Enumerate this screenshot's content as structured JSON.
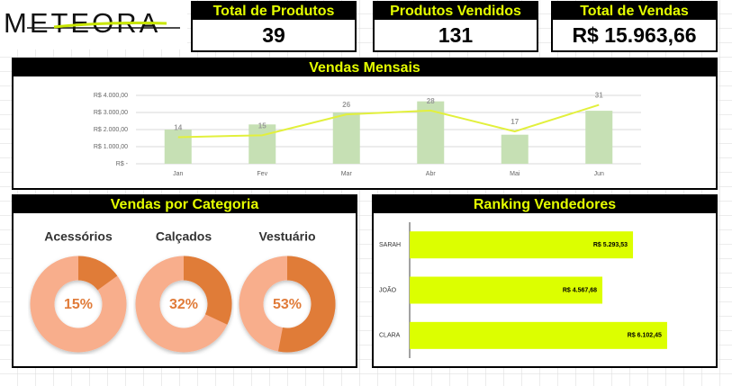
{
  "logo": "METEORA",
  "kpis": [
    {
      "title": "Total de Produtos",
      "value": "39"
    },
    {
      "title": "Produtos Vendidos",
      "value": "131"
    },
    {
      "title": "Total de Vendas",
      "value": "R$ 15.963,66"
    }
  ],
  "chart_data": [
    {
      "type": "bar",
      "title": "Vendas Mensais",
      "categories": [
        "Jan",
        "Fev",
        "Mar",
        "Abr",
        "Mai",
        "Jun"
      ],
      "series": [
        {
          "color": "#c6e0b4",
          "values": [
            2000,
            2300,
            3000,
            3650,
            1700,
            3100
          ]
        },
        {
          "type": "line",
          "axis": "y2",
          "color": "#e2f03c",
          "values": [
            14,
            15,
            26,
            28,
            17,
            31
          ]
        }
      ],
      "ylim": [
        0,
        4000
      ],
      "yticks": [
        {
          "value": 0,
          "label": "R$ -"
        },
        {
          "value": 1000,
          "label": "R$ 1.000,00"
        },
        {
          "value": 2000,
          "label": "R$ 2.000,00"
        },
        {
          "value": 3000,
          "label": "R$ 3.000,00"
        },
        {
          "value": 4000,
          "label": "R$ 4.000,00"
        }
      ],
      "y2lim": [
        0,
        36
      ],
      "grid": true
    },
    {
      "type": "donut",
      "title": "Vendas por Categoria",
      "categories": [
        "Acessórios",
        "Calçados",
        "Vestuário"
      ],
      "values": [
        15,
        32,
        53
      ],
      "value_labels": [
        "15%",
        "32%",
        "53%"
      ],
      "color": "#e07b39",
      "rest_color": "#f8ae8c"
    },
    {
      "type": "barh",
      "title": "Ranking Vendedores",
      "categories": [
        "SARAH",
        "JOÃO",
        "CLARA"
      ],
      "values": [
        5293.53,
        4567.68,
        6102.45
      ],
      "value_labels": [
        "R$ 5.293,53",
        "R$ 4.567,68",
        "R$ 6.102,45"
      ],
      "color": "#dcff00",
      "xlim": [
        0,
        7000
      ]
    }
  ]
}
